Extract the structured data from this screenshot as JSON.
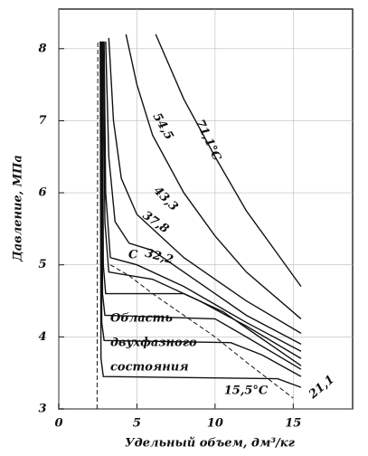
{
  "chart_data": {
    "type": "line",
    "xlabel": "Удельный объем, дм³/кг",
    "ylabel": "Давление, МПа",
    "xlim": [
      0,
      18.8
    ],
    "ylim": [
      3,
      8.55
    ],
    "xticks": [
      0,
      5,
      10,
      15
    ],
    "yticks": [
      3,
      4,
      5,
      6,
      7,
      8
    ],
    "grid": true,
    "color": "#111111",
    "series": [
      {
        "name": "71,1°C",
        "x": [
          6.2,
          8,
          10,
          12,
          14,
          15.5
        ],
        "values": [
          8.2,
          7.3,
          6.5,
          5.75,
          5.15,
          4.7
        ]
      },
      {
        "name": "54,5",
        "x": [
          4.3,
          5,
          6,
          8,
          10,
          12,
          15.5
        ],
        "values": [
          8.2,
          7.5,
          6.8,
          6.0,
          5.4,
          4.9,
          4.25
        ]
      },
      {
        "name": "43,3",
        "x": [
          3.2,
          3.5,
          4,
          5,
          6,
          8,
          10,
          12,
          15.5
        ],
        "values": [
          8.15,
          7.0,
          6.2,
          5.7,
          5.5,
          5.1,
          4.8,
          4.5,
          4.05
        ]
      },
      {
        "name": "37,8",
        "x": [
          3,
          3.2,
          3.6,
          4.5,
          6,
          8,
          10,
          12,
          15.5
        ],
        "values": [
          8.1,
          6.5,
          5.6,
          5.3,
          5.2,
          4.9,
          4.6,
          4.3,
          3.9
        ]
      },
      {
        "name": "32,2",
        "x": [
          2.9,
          3,
          3.3,
          5,
          8,
          10,
          12,
          15.5
        ],
        "values": [
          8.1,
          6.0,
          5.1,
          5.0,
          4.7,
          4.45,
          4.2,
          3.8
        ]
      },
      {
        "x": [
          2.85,
          2.95,
          3.2,
          6,
          9,
          12,
          15.5
        ],
        "values": [
          8.1,
          5.6,
          4.9,
          4.8,
          4.5,
          4.15,
          3.7
        ]
      },
      {
        "x": [
          2.8,
          2.85,
          3.0,
          8,
          10.5,
          12.5,
          15.5
        ],
        "values": [
          8.1,
          5.0,
          4.6,
          4.6,
          4.35,
          4.05,
          3.6
        ]
      },
      {
        "x": [
          2.75,
          2.8,
          2.95,
          10,
          12,
          15.5
        ],
        "values": [
          8.1,
          4.6,
          4.3,
          4.25,
          4.0,
          3.55
        ]
      },
      {
        "name": "21,1",
        "x": [
          2.7,
          2.75,
          2.9,
          11,
          13,
          15.5
        ],
        "values": [
          8.1,
          4.2,
          3.95,
          3.92,
          3.75,
          3.45
        ]
      },
      {
        "name": "15,5°C",
        "x": [
          2.65,
          2.7,
          2.85,
          14,
          15.5
        ],
        "values": [
          8.1,
          3.7,
          3.45,
          3.42,
          3.3
        ]
      },
      {
        "dashed": true,
        "x": [
          2.45,
          2.5
        ],
        "values": [
          3,
          8.1
        ]
      },
      {
        "dashed": true,
        "x": [
          3.3,
          4.5,
          6,
          8,
          10,
          12,
          15
        ],
        "values": [
          5.0,
          4.85,
          4.6,
          4.3,
          4.0,
          3.65,
          3.15
        ]
      }
    ],
    "annotations": [
      "C",
      "Область",
      "двухфазного",
      "состояния"
    ]
  }
}
